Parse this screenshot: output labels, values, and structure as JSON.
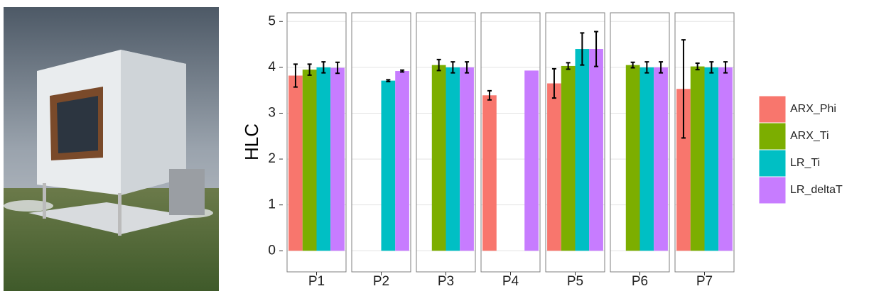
{
  "chart_data": {
    "type": "bar",
    "y_label": "HLC",
    "categories": [
      "P1",
      "P2",
      "P3",
      "P4",
      "P5",
      "P6",
      "P7"
    ],
    "series": [
      {
        "name": "ARX_Phi",
        "color": "#F8766D",
        "values": [
          3.82,
          null,
          null,
          3.39,
          3.65,
          null,
          3.53
        ],
        "errors": [
          0.25,
          null,
          null,
          0.1,
          0.32,
          null,
          1.07
        ]
      },
      {
        "name": "ARX_Ti",
        "color": "#7CAE00",
        "values": [
          3.95,
          null,
          4.05,
          null,
          4.03,
          4.05,
          4.02
        ],
        "errors": [
          0.12,
          null,
          0.12,
          null,
          0.07,
          0.06,
          0.07
        ]
      },
      {
        "name": "LR_Ti",
        "color": "#00BFC4",
        "values": [
          4.0,
          3.71,
          4.0,
          null,
          4.4,
          4.0,
          4.0
        ],
        "errors": [
          0.12,
          0.02,
          0.12,
          null,
          0.35,
          0.12,
          0.12
        ]
      },
      {
        "name": "LR_deltaT",
        "color": "#C77CFF",
        "values": [
          3.99,
          3.92,
          4.0,
          3.93,
          4.4,
          4.0,
          4.0
        ],
        "errors": [
          0.12,
          0.02,
          0.12,
          null,
          0.38,
          0.12,
          0.12
        ]
      }
    ],
    "ylim": [
      -0.46,
      5.19
    ],
    "yticks": [
      0,
      1,
      2,
      3,
      4,
      5
    ],
    "grid": true,
    "legend": "right"
  }
}
